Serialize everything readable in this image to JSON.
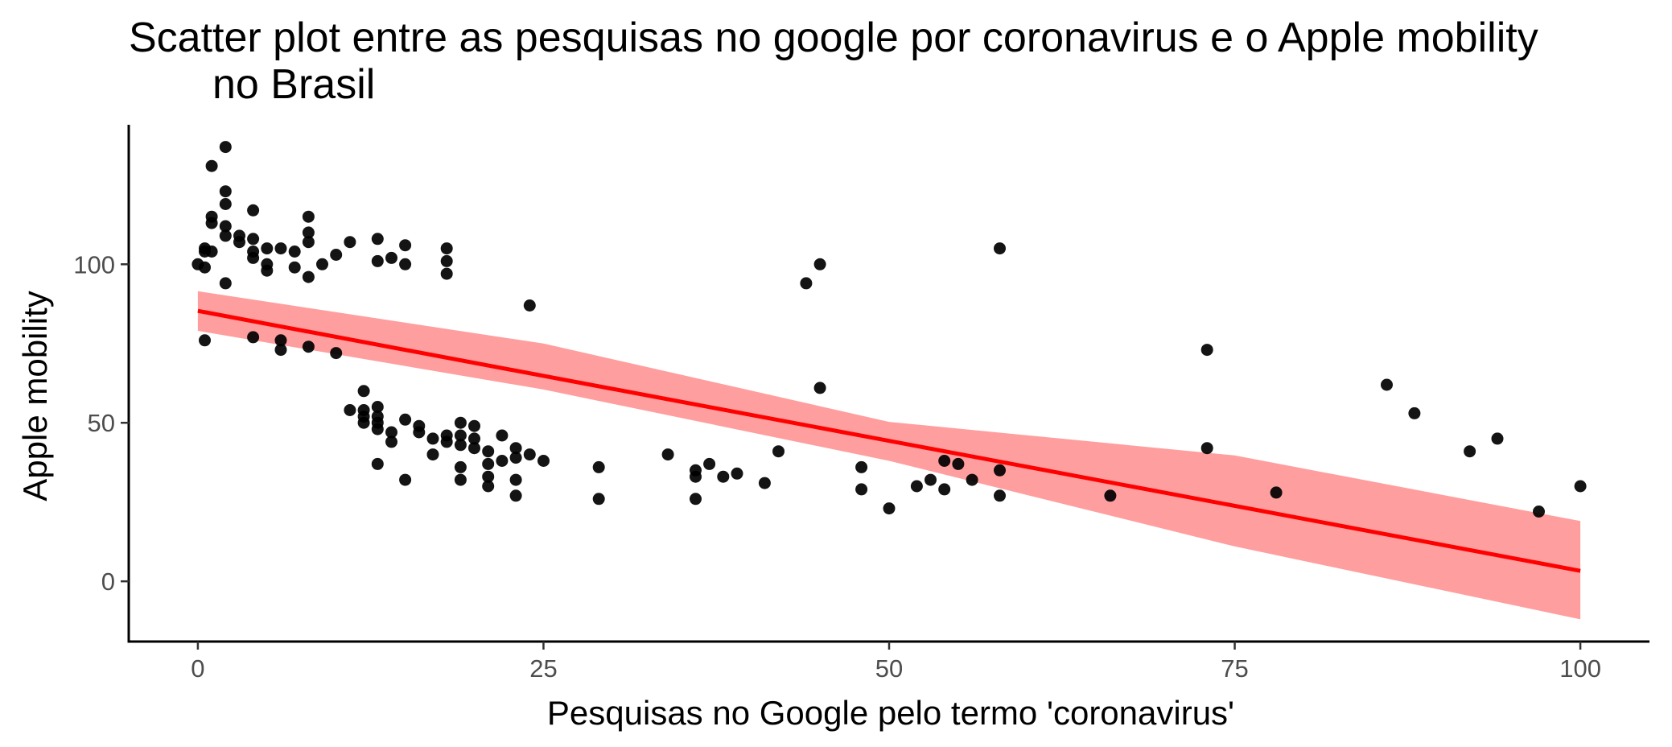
{
  "chart_data": {
    "type": "scatter",
    "title_line1": "Scatter plot entre as pesquisas no google por coronavirus e o Apple mobility",
    "title_line2": "no Brasil",
    "xlabel": "Pesquisas no Google pelo termo 'coronavirus'",
    "ylabel": "Apple mobility",
    "xlim": [
      -5,
      105
    ],
    "ylim": [
      -19,
      144
    ],
    "x_ticks": [
      0,
      25,
      50,
      75,
      100
    ],
    "y_ticks": [
      0,
      50,
      100
    ],
    "grid": false,
    "point_color": "#000000",
    "points": [
      [
        0,
        100
      ],
      [
        0.5,
        99
      ],
      [
        0.5,
        104
      ],
      [
        0.5,
        105
      ],
      [
        0.5,
        76
      ],
      [
        1,
        131
      ],
      [
        1,
        115
      ],
      [
        1,
        113
      ],
      [
        1,
        104
      ],
      [
        2,
        137
      ],
      [
        2,
        123
      ],
      [
        2,
        119
      ],
      [
        2,
        112
      ],
      [
        2,
        109
      ],
      [
        2,
        94
      ],
      [
        3,
        109
      ],
      [
        3,
        107
      ],
      [
        4,
        117
      ],
      [
        4,
        108
      ],
      [
        4,
        104
      ],
      [
        4,
        102
      ],
      [
        4,
        77
      ],
      [
        5,
        105
      ],
      [
        5,
        100
      ],
      [
        5,
        98
      ],
      [
        6,
        105
      ],
      [
        6,
        76
      ],
      [
        6,
        73
      ],
      [
        7,
        104
      ],
      [
        7,
        99
      ],
      [
        8,
        115
      ],
      [
        8,
        110
      ],
      [
        8,
        107
      ],
      [
        8,
        96
      ],
      [
        8,
        74
      ],
      [
        9,
        100
      ],
      [
        10,
        103
      ],
      [
        10,
        72
      ],
      [
        11,
        107
      ],
      [
        11,
        54
      ],
      [
        12,
        60
      ],
      [
        12,
        54
      ],
      [
        12,
        52
      ],
      [
        12,
        50
      ],
      [
        13,
        108
      ],
      [
        13,
        101
      ],
      [
        13,
        55
      ],
      [
        13,
        52
      ],
      [
        13,
        50
      ],
      [
        13,
        48
      ],
      [
        13,
        37
      ],
      [
        14,
        102
      ],
      [
        14,
        47
      ],
      [
        14,
        44
      ],
      [
        15,
        106
      ],
      [
        15,
        100
      ],
      [
        15,
        51
      ],
      [
        15,
        32
      ],
      [
        16,
        49
      ],
      [
        16,
        47
      ],
      [
        17,
        45
      ],
      [
        17,
        40
      ],
      [
        18,
        105
      ],
      [
        18,
        101
      ],
      [
        18,
        97
      ],
      [
        18,
        46
      ],
      [
        18,
        44
      ],
      [
        19,
        50
      ],
      [
        19,
        46
      ],
      [
        19,
        43
      ],
      [
        19,
        36
      ],
      [
        19,
        32
      ],
      [
        20,
        49
      ],
      [
        20,
        45
      ],
      [
        20,
        42
      ],
      [
        21,
        41
      ],
      [
        21,
        37
      ],
      [
        21,
        33
      ],
      [
        21,
        30
      ],
      [
        22,
        46
      ],
      [
        22,
        38
      ],
      [
        23,
        42
      ],
      [
        23,
        39
      ],
      [
        23,
        32
      ],
      [
        23,
        27
      ],
      [
        24,
        87
      ],
      [
        24,
        40
      ],
      [
        25,
        38
      ],
      [
        29,
        36
      ],
      [
        29,
        26
      ],
      [
        34,
        40
      ],
      [
        36,
        35
      ],
      [
        36,
        33
      ],
      [
        36,
        26
      ],
      [
        37,
        37
      ],
      [
        38,
        33
      ],
      [
        39,
        34
      ],
      [
        41,
        31
      ],
      [
        42,
        41
      ],
      [
        44,
        94
      ],
      [
        45,
        100
      ],
      [
        45,
        61
      ],
      [
        48,
        36
      ],
      [
        48,
        29
      ],
      [
        50,
        23
      ],
      [
        52,
        30
      ],
      [
        53,
        32
      ],
      [
        54,
        38
      ],
      [
        54,
        29
      ],
      [
        55,
        37
      ],
      [
        56,
        32
      ],
      [
        58,
        105
      ],
      [
        58,
        35
      ],
      [
        58,
        27
      ],
      [
        66,
        27
      ],
      [
        73,
        73
      ],
      [
        73,
        42
      ],
      [
        78,
        28
      ],
      [
        86,
        62
      ],
      [
        88,
        53
      ],
      [
        92,
        41
      ],
      [
        94,
        45
      ],
      [
        97,
        22
      ],
      [
        100,
        30
      ]
    ],
    "regression": {
      "color": "#ff0000",
      "band_color": "#ff9999",
      "intercept": 85.3,
      "slope": -0.82,
      "band_x": [
        0,
        25,
        50,
        75,
        100
      ],
      "band_low": [
        79.0,
        60.5,
        38.0,
        11.0,
        -12.0
      ],
      "band_high": [
        91.5,
        75.0,
        50.3,
        39.7,
        19.0
      ]
    }
  }
}
